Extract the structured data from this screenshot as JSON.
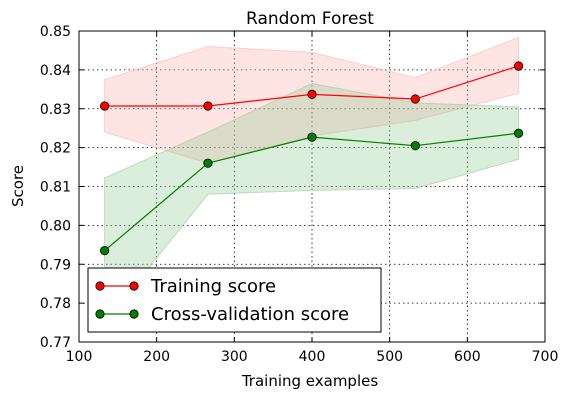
{
  "chart_data": {
    "type": "line",
    "title": "Random Forest",
    "xlabel": "Training examples",
    "ylabel": "Score",
    "xlim": [
      100,
      700
    ],
    "ylim": [
      0.77,
      0.85
    ],
    "xticks": [
      100,
      200,
      300,
      400,
      500,
      600,
      700
    ],
    "yticks": [
      0.77,
      0.78,
      0.79,
      0.8,
      0.81,
      0.82,
      0.83,
      0.84,
      0.85
    ],
    "xtick_labels": [
      "100",
      "200",
      "300",
      "400",
      "500",
      "600",
      "700"
    ],
    "ytick_labels": [
      "0.77",
      "0.78",
      "0.79",
      "0.80",
      "0.81",
      "0.82",
      "0.83",
      "0.84",
      "0.85"
    ],
    "grid": true,
    "legend_position": "lower-left",
    "x": [
      133,
      266,
      400,
      533,
      666
    ],
    "series": [
      {
        "name": "Training score",
        "color": "#ff0000",
        "band_color": "#ffb3b3",
        "values": [
          0.8307,
          0.8307,
          0.8337,
          0.8325,
          0.841
        ],
        "lower": [
          0.824,
          0.816,
          0.823,
          0.827,
          0.834
        ],
        "upper": [
          0.8375,
          0.846,
          0.8445,
          0.838,
          0.8483
        ]
      },
      {
        "name": "Cross-validation score",
        "color": "#008000",
        "band_color": "#99cc99",
        "values": [
          0.7935,
          0.816,
          0.8227,
          0.8205,
          0.8237
        ],
        "lower": [
          0.775,
          0.808,
          0.809,
          0.8095,
          0.817
        ],
        "upper": [
          0.8122,
          0.824,
          0.8365,
          0.8315,
          0.8305
        ]
      }
    ]
  }
}
